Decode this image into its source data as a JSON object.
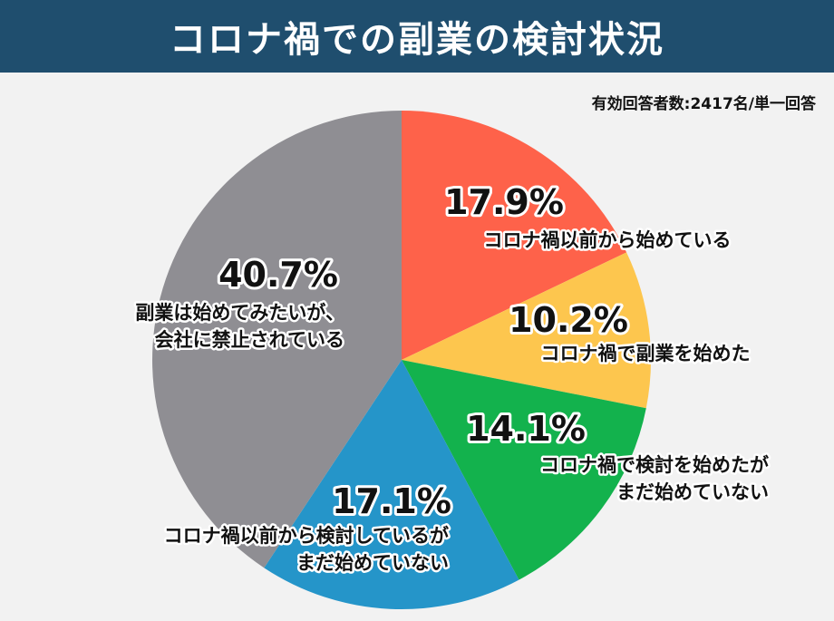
{
  "title": "コロナ禍での副業の検討状況",
  "note": "有効回答者数:2417名/単一回答",
  "chart_data": {
    "type": "pie",
    "title": "コロナ禍での副業の検討状況",
    "slices": [
      {
        "value": 17.9,
        "pct_label": "17.9%",
        "label_lines": [
          "コロナ禍以前から始めている"
        ],
        "color": "#fe624a"
      },
      {
        "value": 10.2,
        "pct_label": "10.2%",
        "label_lines": [
          "コロナ禍で副業を始めた"
        ],
        "color": "#fdc64e"
      },
      {
        "value": 14.1,
        "pct_label": "14.1%",
        "label_lines": [
          "コロナ禍で検討を始めたが",
          "まだ始めていない"
        ],
        "color": "#13b24d"
      },
      {
        "value": 17.1,
        "pct_label": "17.1%",
        "label_lines": [
          "コロナ禍以前から検討しているが",
          "まだ始めていない"
        ],
        "color": "#2595c9"
      },
      {
        "value": 40.7,
        "pct_label": "40.7%",
        "label_lines": [
          "副業は始めてみたいが、",
          "会社に禁止されている"
        ],
        "color": "#8f8e93"
      }
    ]
  }
}
